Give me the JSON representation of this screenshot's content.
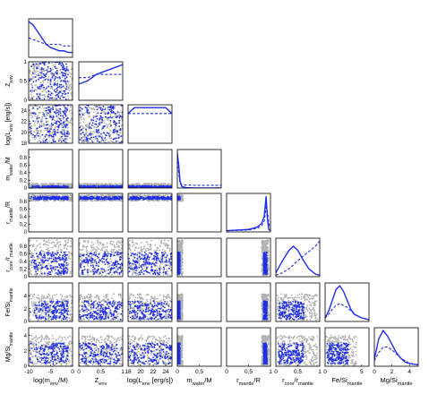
{
  "chart_data": {
    "type": "corner",
    "variables": [
      "m_env/M",
      "Z_env",
      "L_env",
      "m_water/M",
      "r_mantle/R",
      "r_core/r_mantle",
      "Fe/Si_mantle",
      "Mg/Si_mantle"
    ],
    "ranges": [
      [
        -10,
        0
      ],
      [
        0,
        1
      ],
      [
        18,
        25
      ],
      [
        0,
        1
      ],
      [
        0,
        1
      ],
      [
        0,
        1
      ],
      [
        0,
        6
      ],
      [
        0,
        5
      ]
    ],
    "colors": {
      "prior": "#b0b0b0",
      "posterior": "#1f2fe8",
      "frame": "#000000"
    },
    "tick_labels": {
      "x": [
        [
          {
            "v": -10,
            "t": "-10"
          },
          {
            "v": -5,
            "t": "-5"
          },
          {
            "v": 0,
            "t": "0"
          }
        ],
        [
          {
            "v": 0,
            "t": "0"
          },
          {
            "v": 0.5,
            "t": "0.5"
          },
          {
            "v": 1,
            "t": "1"
          }
        ],
        [
          {
            "v": 18,
            "t": "18"
          },
          {
            "v": 20,
            "t": "20"
          },
          {
            "v": 22,
            "t": "22"
          },
          {
            "v": 24,
            "t": "24"
          }
        ],
        [
          {
            "v": 0,
            "t": "0"
          },
          {
            "v": 0.5,
            "t": "0.5"
          }
        ],
        [
          {
            "v": 0,
            "t": "0"
          },
          {
            "v": 0.5,
            "t": "0.5"
          },
          {
            "v": 1,
            "t": "1"
          }
        ],
        [
          {
            "v": 0,
            "t": "0"
          },
          {
            "v": 0.5,
            "t": "0.5"
          },
          {
            "v": 1,
            "t": "1"
          }
        ],
        [
          {
            "v": 0,
            "t": "0"
          },
          {
            "v": 5,
            "t": "5"
          }
        ],
        [
          {
            "v": 0,
            "t": "0"
          },
          {
            "v": 2,
            "t": "2"
          },
          {
            "v": 4,
            "t": "4"
          }
        ]
      ],
      "y": [
        null,
        [
          {
            "v": 0,
            "t": "0"
          },
          {
            "v": 0.5,
            "t": "0.5"
          },
          {
            "v": 1,
            "t": "1"
          }
        ],
        [
          {
            "v": 18,
            "t": "18"
          },
          {
            "v": 20,
            "t": "20"
          },
          {
            "v": 22,
            "t": "22"
          },
          {
            "v": 24,
            "t": "24"
          }
        ],
        [
          {
            "v": 0,
            "t": "0"
          },
          {
            "v": 0.2,
            "t": "0.2"
          },
          {
            "v": 0.4,
            "t": "0.4"
          },
          {
            "v": 0.6,
            "t": "0.6"
          },
          {
            "v": 0.8,
            "t": "0.8"
          }
        ],
        [
          {
            "v": 0,
            "t": "0"
          },
          {
            "v": 0.2,
            "t": "0.2"
          },
          {
            "v": 0.4,
            "t": "0.4"
          },
          {
            "v": 0.6,
            "t": "0.6"
          },
          {
            "v": 0.8,
            "t": "0.8"
          }
        ],
        [
          {
            "v": 0,
            "t": "0"
          },
          {
            "v": 0.2,
            "t": "0.2"
          },
          {
            "v": 0.4,
            "t": "0.4"
          },
          {
            "v": 0.6,
            "t": "0.6"
          },
          {
            "v": 0.8,
            "t": "0.8"
          }
        ],
        [
          {
            "v": 0,
            "t": "0"
          },
          {
            "v": 2,
            "t": "2"
          },
          {
            "v": 4,
            "t": "4"
          }
        ],
        [
          {
            "v": 0,
            "t": "0"
          },
          {
            "v": 2,
            "t": "2"
          },
          {
            "v": 4,
            "t": "4"
          }
        ]
      ]
    },
    "axis_labels": {
      "x": [
        {
          "base": "log(m",
          "sub": "env",
          "tail": "/M)"
        },
        {
          "base": "Z",
          "sub": "env",
          "tail": ""
        },
        {
          "base": "log(L",
          "sub": "env",
          "tail": " [erg/s])"
        },
        {
          "base": "m",
          "sub": "water",
          "tail": "/M"
        },
        {
          "base": "r",
          "sub": "mantle",
          "tail": "/R"
        },
        {
          "base": "r",
          "sub": "core",
          "tail": "/r",
          "sub2": "mantle"
        },
        {
          "base": "Fe/Si",
          "sub": "mantle",
          "tail": ""
        },
        {
          "base": "Mg/Si",
          "sub": "mantle",
          "tail": ""
        }
      ],
      "y": [
        null,
        {
          "base": "Z",
          "sub": "env",
          "tail": ""
        },
        {
          "base": "log(L",
          "sub": "env",
          "tail": " [erg/s])"
        },
        {
          "base": "m",
          "sub": "water",
          "tail": "/M"
        },
        {
          "base": "r",
          "sub": "mantle",
          "tail": "/R"
        },
        {
          "base": "r",
          "sub": "core",
          "tail": "/r",
          "sub2": "mantle"
        },
        {
          "base": "Fe/Si",
          "sub": "mantle",
          "tail": ""
        },
        {
          "base": "Mg/Si",
          "sub": "mantle",
          "tail": ""
        }
      ]
    },
    "marginals": [
      {
        "x": [
          -10,
          -9,
          -8,
          -7,
          -6,
          -5,
          -4,
          -3,
          -2,
          -1,
          0
        ],
        "posterior": [
          0.22,
          0.2,
          0.16,
          0.12,
          0.08,
          0.06,
          0.05,
          0.04,
          0.04,
          0.03,
          0.03
        ],
        "prior": [
          0.12,
          0.11,
          0.1,
          0.09,
          0.08,
          0.08,
          0.08,
          0.08,
          0.07,
          0.07,
          0.07
        ]
      },
      {
        "x": [
          0,
          0.2,
          0.4,
          0.6,
          0.8,
          1
        ],
        "posterior": [
          0.05,
          0.06,
          0.08,
          0.09,
          0.1,
          0.11
        ],
        "prior": [
          0.07,
          0.07,
          0.08,
          0.08,
          0.08,
          0.08
        ]
      },
      {
        "x": [
          18,
          19,
          20,
          21,
          22,
          23,
          24,
          25
        ],
        "posterior": [
          0.05,
          0.06,
          0.06,
          0.06,
          0.06,
          0.06,
          0.06,
          0.05
        ],
        "prior": [
          0.05,
          0.05,
          0.05,
          0.05,
          0.05,
          0.05,
          0.05,
          0.05
        ]
      },
      {
        "x": [
          0,
          0.03,
          0.06,
          0.1,
          0.2,
          0.4,
          0.6,
          0.8,
          1
        ],
        "posterior": [
          0.88,
          0.62,
          0.2,
          0.04,
          0.01,
          0,
          0,
          0,
          0
        ],
        "prior": [
          0.92,
          0.4,
          0.12,
          0.08,
          0.08,
          0.07,
          0.07,
          0.07,
          0.07
        ]
      },
      {
        "x": [
          0,
          0.5,
          0.7,
          0.8,
          0.86,
          0.9,
          0.93,
          0.96,
          1
        ],
        "posterior": [
          0.02,
          0.04,
          0.08,
          0.14,
          0.26,
          0.58,
          0.22,
          0.04,
          0.02
        ],
        "prior": [
          0.02,
          0.03,
          0.06,
          0.1,
          0.18,
          0.4,
          0.35,
          0.15,
          0.05
        ]
      },
      {
        "x": [
          0,
          0.15,
          0.3,
          0.4,
          0.5,
          0.6,
          0.75,
          0.9,
          1
        ],
        "posterior": [
          0.03,
          0.12,
          0.2,
          0.23,
          0.2,
          0.14,
          0.06,
          0.02,
          0.01
        ],
        "prior": [
          0.01,
          0.03,
          0.06,
          0.09,
          0.12,
          0.15,
          0.19,
          0.23,
          0.27
        ]
      },
      {
        "x": [
          0,
          0.5,
          1,
          1.5,
          2,
          2.5,
          3,
          3.5,
          4,
          5,
          6
        ],
        "posterior": [
          0.02,
          0.06,
          0.12,
          0.18,
          0.2,
          0.17,
          0.12,
          0.07,
          0.04,
          0.02,
          0.01
        ],
        "prior": [
          0.02,
          0.04,
          0.07,
          0.09,
          0.1,
          0.09,
          0.08,
          0.06,
          0.04,
          0.02,
          0.01
        ]
      },
      {
        "x": [
          0,
          0.5,
          1,
          1.5,
          2,
          2.5,
          3,
          3.5,
          4,
          5
        ],
        "posterior": [
          0.05,
          0.2,
          0.26,
          0.22,
          0.16,
          0.1,
          0.06,
          0.03,
          0.02,
          0.01
        ],
        "prior": [
          0.04,
          0.1,
          0.14,
          0.14,
          0.12,
          0.09,
          0.06,
          0.04,
          0.02,
          0.01
        ]
      }
    ],
    "scatter_dist": [
      {
        "post": {
          "lo": -10,
          "hi": -1,
          "skew": 0.6
        },
        "prior": {
          "lo": -10,
          "hi": 0,
          "skew": 1
        }
      },
      {
        "post": {
          "lo": 0.02,
          "hi": 1,
          "skew": 1
        },
        "prior": {
          "lo": 0,
          "hi": 1,
          "skew": 1
        }
      },
      {
        "post": {
          "lo": 18,
          "hi": 25,
          "skew": 1
        },
        "prior": {
          "lo": 18,
          "hi": 25,
          "skew": 1
        }
      },
      {
        "post": {
          "lo": 0,
          "hi": 0.06,
          "skew": 1
        },
        "prior": {
          "lo": 0,
          "hi": 0.12,
          "skew": 1
        }
      },
      {
        "post": {
          "lo": 0.84,
          "hi": 0.92,
          "skew": 1
        },
        "prior": {
          "lo": 0.8,
          "hi": 0.96,
          "skew": 1
        }
      },
      {
        "post": {
          "lo": 0.06,
          "hi": 0.64,
          "skew": 1
        },
        "prior": {
          "lo": 0.03,
          "hi": 0.95,
          "skew": 1
        }
      },
      {
        "post": {
          "lo": 0.3,
          "hi": 3.2,
          "skew": 1
        },
        "prior": {
          "lo": 0.1,
          "hi": 4.3,
          "skew": 1
        }
      },
      {
        "post": {
          "lo": 0.3,
          "hi": 3.0,
          "skew": 1
        },
        "prior": {
          "lo": 0.1,
          "hi": 4.0,
          "skew": 1
        }
      }
    ]
  }
}
